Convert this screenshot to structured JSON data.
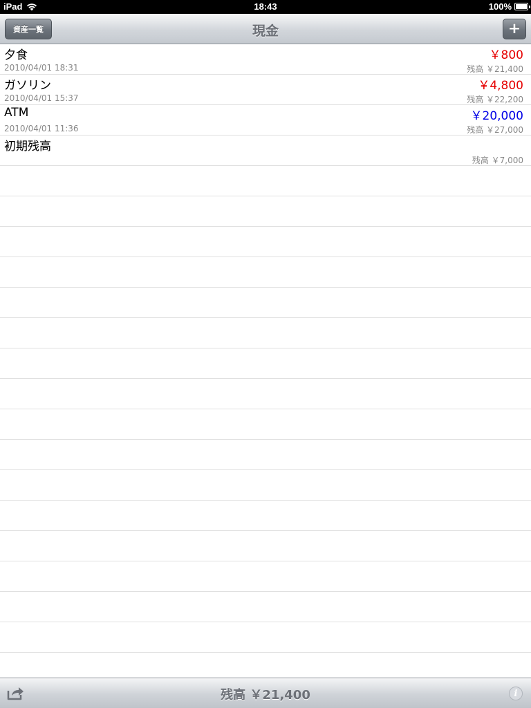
{
  "status_bar": {
    "device": "iPad",
    "time": "18:43",
    "battery": "100%",
    "battery_level": 1.0
  },
  "nav": {
    "back_label": "資産一覧",
    "title": "現金",
    "add_label": "+"
  },
  "transactions": [
    {
      "name": "夕食",
      "amount": "￥800",
      "type": "neg",
      "date": "2010/04/01 18:31",
      "balance": "残高 ￥21,400"
    },
    {
      "name": "ガソリン",
      "amount": "￥4,800",
      "type": "neg",
      "date": "2010/04/01 15:37",
      "balance": "残高 ￥22,200"
    },
    {
      "name": "ATM",
      "amount": "￥20,000",
      "type": "pos",
      "date": "2010/04/01 11:36",
      "balance": "残高 ￥27,000"
    },
    {
      "name": "初期残高",
      "amount": "",
      "type": "",
      "date": "",
      "balance": "残高 ￥7,000"
    }
  ],
  "toolbar": {
    "total": "残高 ￥21,400",
    "share_icon": "share-icon",
    "info_icon": "info-icon"
  },
  "colors": {
    "negative": "#e60000",
    "positive": "#0000e6"
  }
}
